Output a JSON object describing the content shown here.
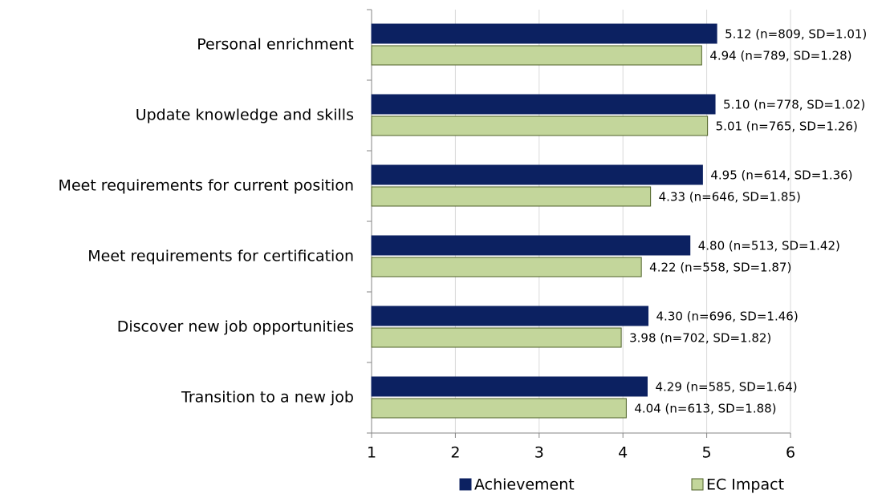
{
  "chart_data": {
    "type": "hbar",
    "categories": [
      "Personal enrichment",
      "Update knowledge and skills",
      "Meet requirements for current position",
      "Meet requirements for certification",
      "Discover new job opportunities",
      "Transition to a new job"
    ],
    "series": [
      {
        "name": "Achievement",
        "color": "#0c2161",
        "edge": "#0c2161",
        "values": [
          5.12,
          5.1,
          4.95,
          4.8,
          4.3,
          4.29
        ],
        "value_labels": [
          "5.12 (n=809, SD=1.01)",
          "5.10 (n=778, SD=1.02)",
          "4.95 (n=614, SD=1.36)",
          "4.80 (n=513, SD=1.42)",
          "4.30 (n=696, SD=1.46)",
          "4.29 (n=585, SD=1.64)"
        ]
      },
      {
        "name": "EC Impact",
        "color": "#c3d69b",
        "edge": "#4f6228",
        "values": [
          4.94,
          5.01,
          4.33,
          4.22,
          3.98,
          4.04
        ],
        "value_labels": [
          "4.94 (n=789, SD=1.28)",
          "5.01 (n=765, SD=1.26)",
          "4.33 (n=646, SD=1.85)",
          "4.22 (n=558, SD=1.87)",
          "3.98 (n=702, SD=1.82)",
          "4.04 (n=613, SD=1.88)"
        ]
      }
    ],
    "xlim": [
      1,
      6
    ],
    "xticks": [
      1,
      2,
      3,
      4,
      5,
      6
    ],
    "grid": true,
    "legend": "bottom"
  }
}
